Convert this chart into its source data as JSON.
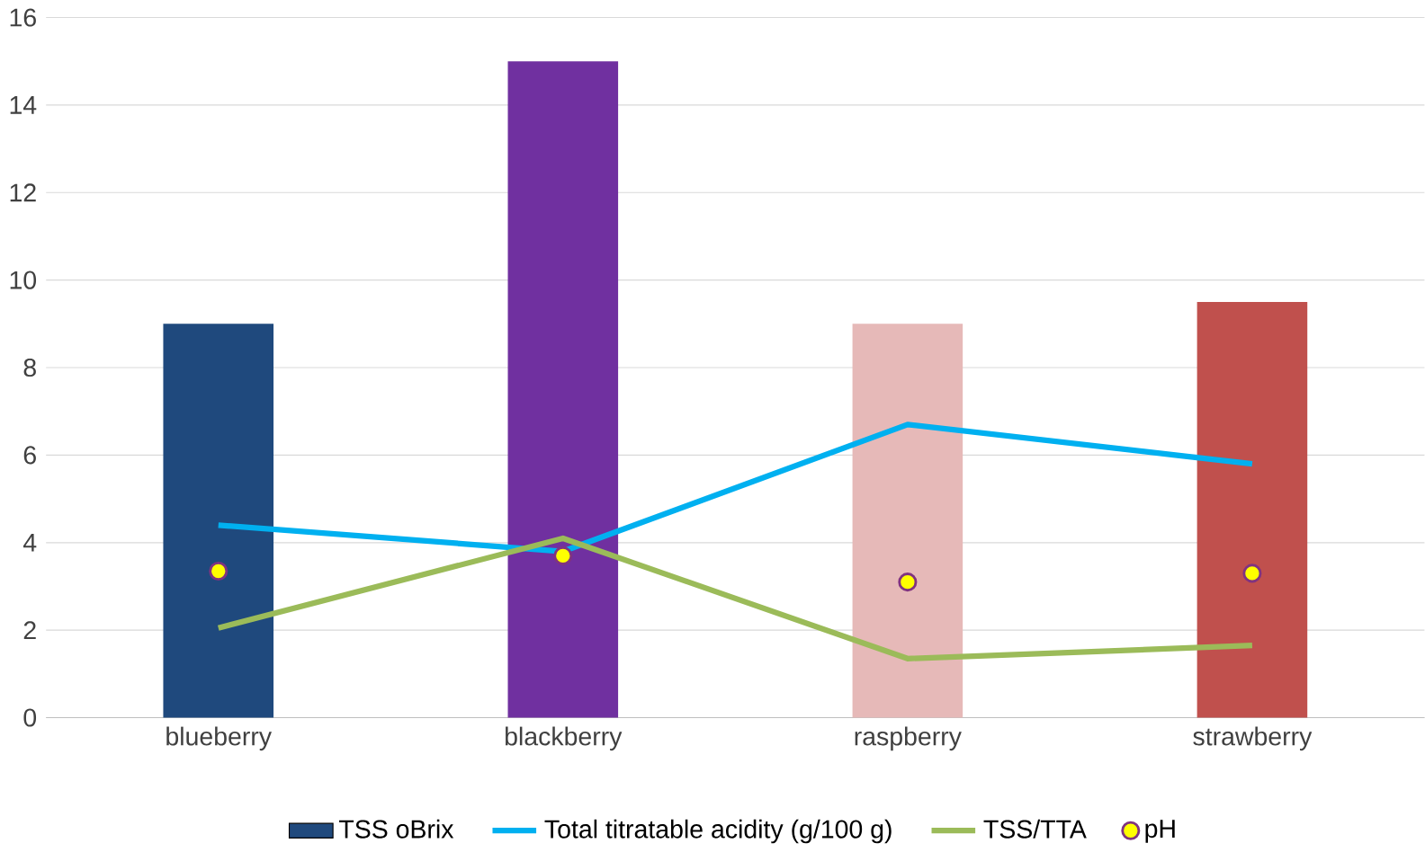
{
  "chart_data": {
    "type": "bar",
    "categories": [
      "blueberry",
      "blackberry",
      "raspberry",
      "strawberry"
    ],
    "series": [
      {
        "name": "TSS oBrix",
        "colors": [
          "#1f497d",
          "#7030a0",
          "#e6b9b8",
          "#c0504d"
        ],
        "values": [
          9.0,
          15.0,
          9.0,
          9.5
        ]
      },
      {
        "name": "Total titratable acidity (g/100 g)",
        "type": "line",
        "color": "#00b0f0",
        "marker": "none",
        "values": [
          4.4,
          3.8,
          6.7,
          5.8
        ]
      },
      {
        "name": "TSS/TTA",
        "type": "line",
        "color": "#9bbb59",
        "marker": "none",
        "values": [
          2.05,
          4.1,
          1.35,
          1.65
        ]
      },
      {
        "name": "pH",
        "type": "scatter",
        "color": "#ffff00",
        "marker": "circle",
        "values": [
          3.35,
          3.7,
          3.1,
          3.3
        ]
      }
    ],
    "ylim": [
      0,
      16
    ],
    "yticks": [
      0,
      2,
      4,
      6,
      8,
      10,
      12,
      14,
      16
    ],
    "grid": "y",
    "legend": "bottom"
  }
}
